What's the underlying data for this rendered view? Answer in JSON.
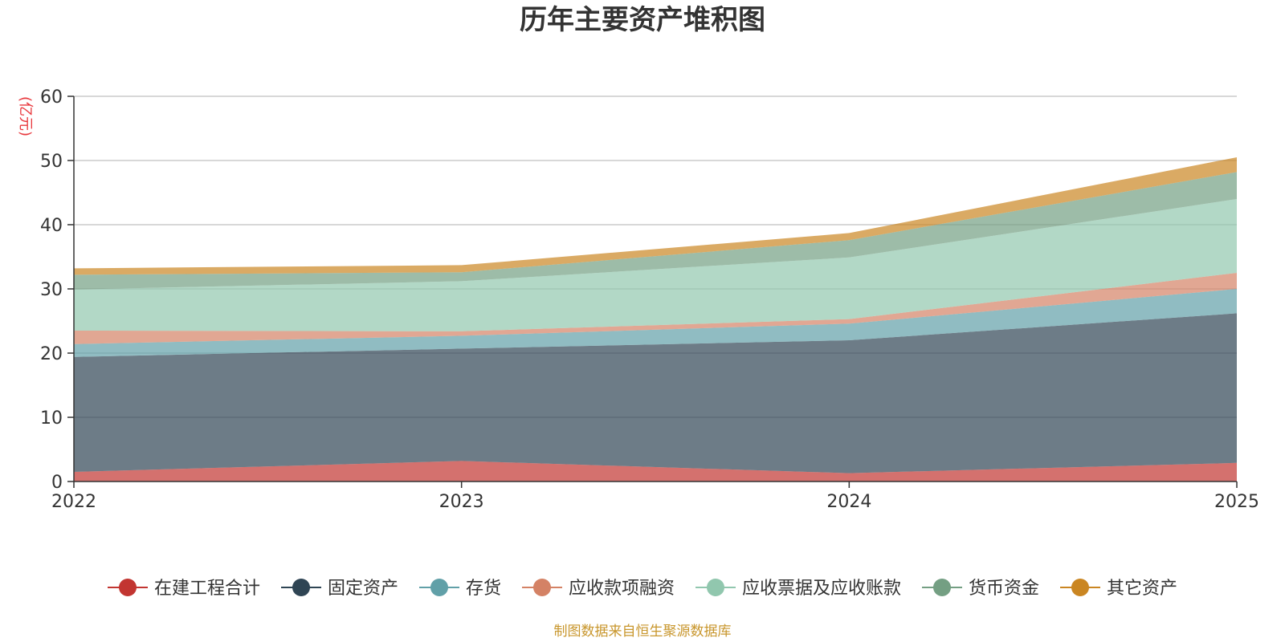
{
  "chart_data": {
    "type": "area",
    "stacked": true,
    "title": "历年主要资产堆积图",
    "ylabel": "(亿元)",
    "xlabel": "",
    "categories": [
      "2022",
      "2023",
      "2024",
      "2025"
    ],
    "ylim": [
      0,
      60
    ],
    "yticks": [
      0,
      10,
      20,
      30,
      40,
      50,
      60
    ],
    "grid": true,
    "legend_position": "bottom",
    "series": [
      {
        "name": "在建工程合计",
        "color": "#c23531",
        "values": [
          1.5,
          3.2,
          1.3,
          2.9
        ]
      },
      {
        "name": "固定资产",
        "color": "#2f4554",
        "values": [
          17.9,
          17.5,
          20.7,
          23.3
        ]
      },
      {
        "name": "存货",
        "color": "#61a0a8",
        "values": [
          2.0,
          2.0,
          2.6,
          3.8
        ]
      },
      {
        "name": "应收款项融资",
        "color": "#d48265",
        "values": [
          2.1,
          0.7,
          0.7,
          2.5
        ]
      },
      {
        "name": "应收票据及应收账款",
        "color": "#91c7ae",
        "values": [
          6.4,
          7.8,
          9.6,
          11.5
        ]
      },
      {
        "name": "货币资金",
        "color": "#749f83",
        "values": [
          2.3,
          1.4,
          2.7,
          4.2
        ]
      },
      {
        "name": "其它资产",
        "color": "#ca8622",
        "values": [
          1.0,
          1.1,
          1.1,
          2.3
        ]
      }
    ],
    "source": "制图数据来自恒生聚源数据库"
  }
}
